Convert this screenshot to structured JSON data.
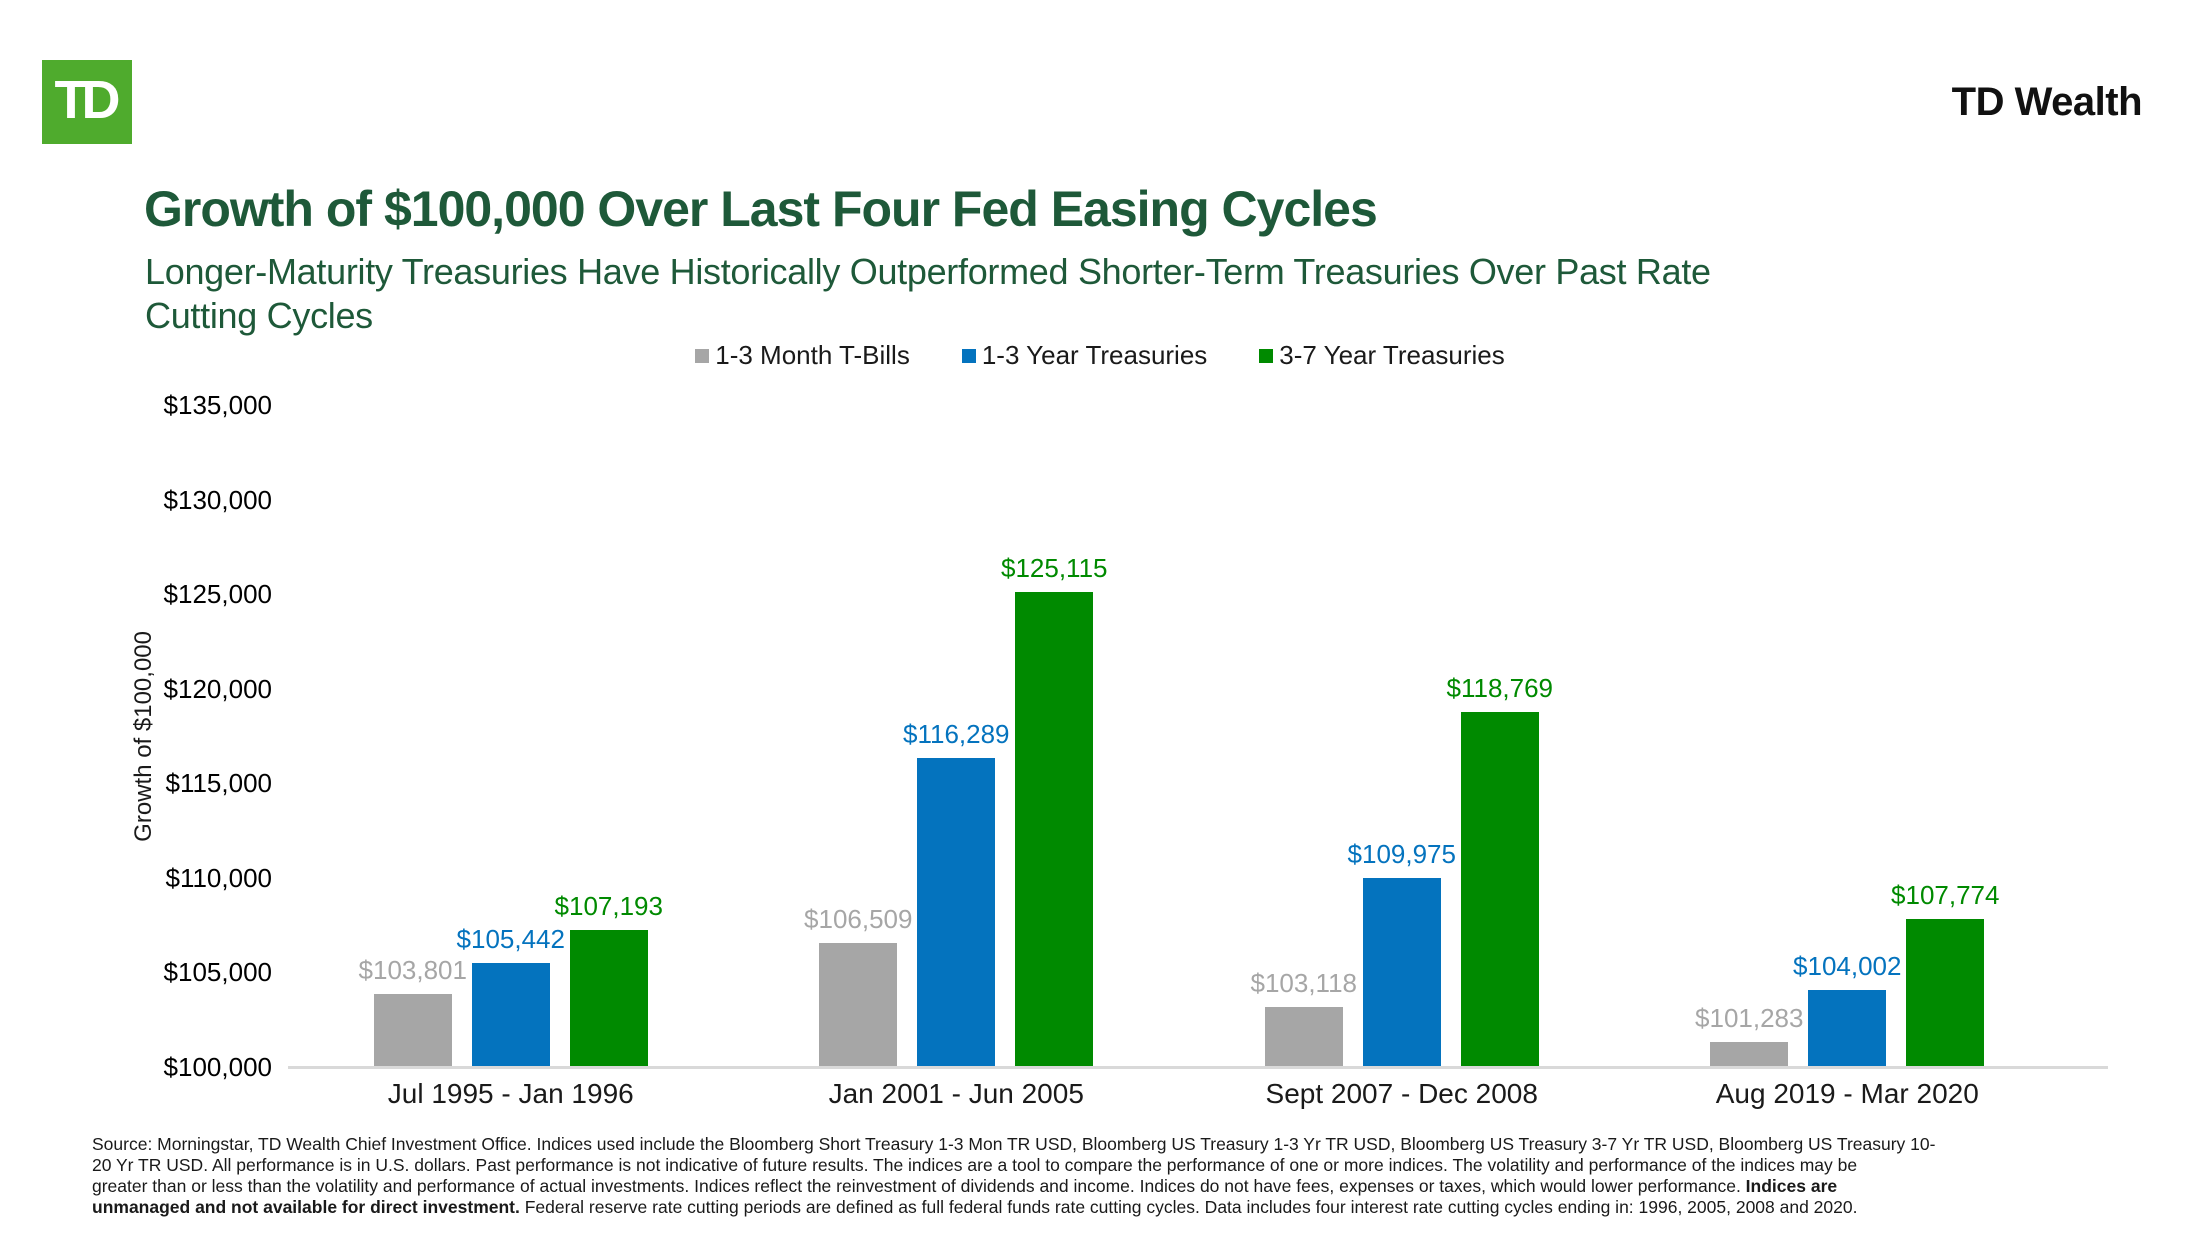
{
  "header": {
    "logo_text": "TD",
    "brand": "TD Wealth"
  },
  "title": "Growth of $100,000 Over Last Four Fed Easing Cycles",
  "subtitle": {
    "full": "Longer-Maturity Treasuries Have Historically Outperformed Shorter-Term Treasuries Over Past Rate Cutting Cycles",
    "lines": [
      "Longer-Maturity Treasuries Have Historically Outperformed Shorter-Term Treasuries Over Past Rate",
      "Cutting Cycles"
    ]
  },
  "colors": {
    "title_green": "#1E5939",
    "brand_black": "#111111",
    "logo_green": "#4FAB2D",
    "logo_text": "#FFFFFF",
    "axis_line": "#D9D9D9",
    "text_dark": "#1A1A1A"
  },
  "chart_data": {
    "type": "bar",
    "title": "Growth of $100,000 Over Last Four Fed Easing Cycles",
    "xlabel": "",
    "ylabel": "Growth of $100,000",
    "ylim": [
      100000,
      135000
    ],
    "grid": false,
    "legend_position": "top",
    "ytick_values": [
      100000,
      105000,
      110000,
      115000,
      120000,
      125000,
      130000,
      135000
    ],
    "ytick_labels": [
      "$100,000",
      "$105,000",
      "$110,000",
      "$115,000",
      "$120,000",
      "$125,000",
      "$130,000",
      "$135,000"
    ],
    "categories": [
      "Jul 1995 - Jan 1996",
      "Jan 2001 - Jun 2005",
      "Sept 2007 - Dec 2008",
      "Aug 2019 - Mar 2020"
    ],
    "series": [
      {
        "name": "1-3 Month T-Bills",
        "color": "#A6A6A6",
        "values": [
          103801,
          106509,
          103118,
          101283
        ],
        "labels": [
          "$103,801",
          "$106,509",
          "$103,118",
          "$101,283"
        ]
      },
      {
        "name": "1-3 Year Treasuries",
        "color": "#0473BE",
        "values": [
          105442,
          116289,
          109975,
          104002
        ],
        "labels": [
          "$105,442",
          "$116,289",
          "$109,975",
          "$104,002"
        ]
      },
      {
        "name": "3-7 Year Treasuries",
        "color": "#008A00",
        "values": [
          107193,
          125115,
          118769,
          107774
        ],
        "labels": [
          "$107,193",
          "$125,115",
          "$118,769",
          "$107,774"
        ]
      }
    ]
  },
  "footnote": {
    "lines": [
      {
        "segments": [
          {
            "text": "Source: Morningstar, TD Wealth Chief Investment Office. Indices used include the Bloomberg Short Treasury 1-3 Mon TR USD, Bloomberg US Treasury 1-3 Yr TR USD, Bloomberg US Treasury 3-7 Yr TR USD, Bloomberg US Treasury 10-",
            "bold": false
          }
        ]
      },
      {
        "segments": [
          {
            "text": "20 Yr TR USD. All performance is in U.S. dollars. Past performance is not indicative of future results. The indices are a tool to compare the performance of one or more indices. The volatility and performance of the indices may be",
            "bold": false
          }
        ]
      },
      {
        "segments": [
          {
            "text": "greater than or less than the volatility and performance of actual investments. Indices reflect the reinvestment of dividends and income. Indices do not have fees, expenses or taxes, which would lower performance. ",
            "bold": false
          },
          {
            "text": "Indices are",
            "bold": true
          }
        ]
      },
      {
        "segments": [
          {
            "text": "unmanaged and not available for direct investment.",
            "bold": true
          },
          {
            "text": " Federal reserve rate cutting periods are defined as full federal funds rate cutting cycles. Data includes four interest rate cutting cycles ending in: 1996, 2005, 2008 and 2020.",
            "bold": false
          }
        ]
      }
    ]
  }
}
